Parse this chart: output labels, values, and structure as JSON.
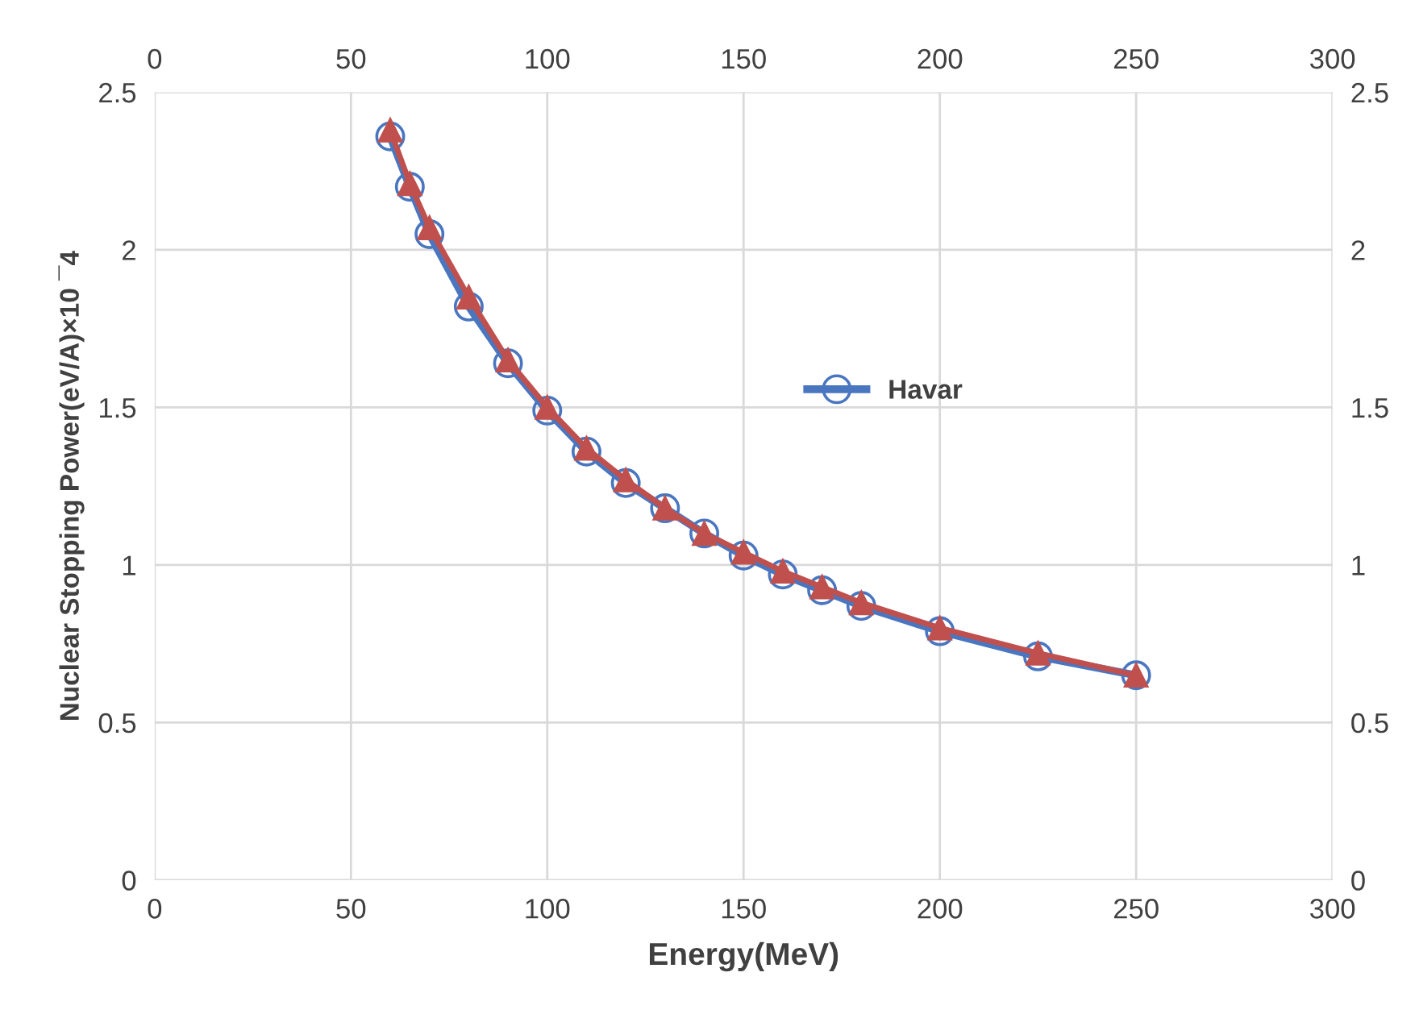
{
  "chart_data": {
    "type": "line",
    "xlabel": "Energy(MeV)",
    "ylabel": "Nuclear Stopping Power(eV/A)×10 ¯4",
    "x": [
      60,
      65,
      70,
      80,
      90,
      100,
      110,
      120,
      130,
      140,
      150,
      160,
      170,
      180,
      200,
      225,
      250
    ],
    "series": [
      {
        "name": "Havar",
        "color": "#4a76c0",
        "marker": "circle",
        "values": [
          2.36,
          2.2,
          2.05,
          1.82,
          1.64,
          1.49,
          1.36,
          1.26,
          1.18,
          1.1,
          1.03,
          0.97,
          0.92,
          0.87,
          0.79,
          0.71,
          0.65
        ]
      },
      {
        "color": "#c0504d",
        "marker": "triangle",
        "values": [
          2.38,
          2.21,
          2.07,
          1.85,
          1.65,
          1.5,
          1.37,
          1.27,
          1.18,
          1.1,
          1.04,
          0.98,
          0.93,
          0.88,
          0.8,
          0.72,
          0.65
        ]
      }
    ],
    "xlim": [
      0,
      300
    ],
    "xticks": [
      0,
      50,
      100,
      150,
      200,
      250,
      300
    ],
    "x2lim": [
      0,
      300
    ],
    "x2ticks": [
      0,
      50,
      100,
      150,
      200,
      250,
      300
    ],
    "ylim": [
      0,
      2.5
    ],
    "yticks": [
      0,
      0.5,
      1,
      1.5,
      2,
      2.5
    ],
    "y2lim": [
      0,
      2.5
    ],
    "y2ticks": [
      0,
      0.5,
      1,
      1.5,
      2,
      2.5
    ],
    "grid": true,
    "legend": "center",
    "line_style": "solid"
  }
}
